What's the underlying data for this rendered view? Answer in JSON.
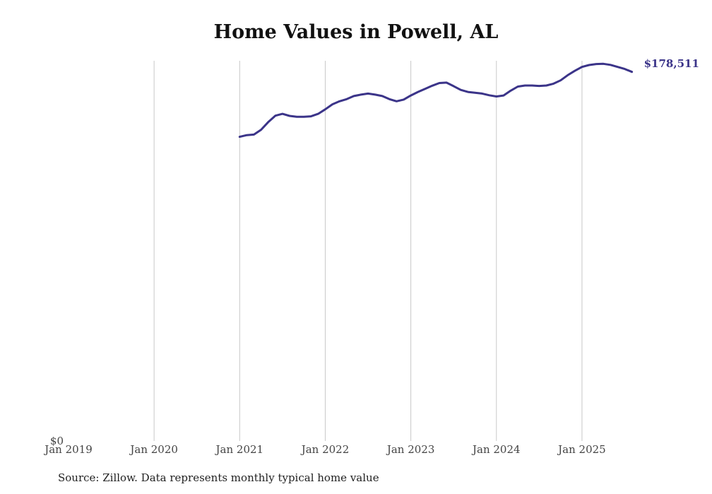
{
  "chart_data": {
    "type": "line",
    "title": "Home Values in Powell, AL",
    "source": "Source: Zillow. Data represents monthly typical home value",
    "xlabel": "",
    "ylabel": "",
    "x_ticks": [
      "Jan 2019",
      "Jan 2020",
      "Jan 2021",
      "Jan 2022",
      "Jan 2023",
      "Jan 2024",
      "Jan 2025"
    ],
    "y_ticks": [
      {
        "value": 0,
        "label": "$0"
      }
    ],
    "ylim": [
      0,
      178511
    ],
    "xlim": [
      "2019-01",
      "2025-12"
    ],
    "grid": {
      "vertical": true,
      "horizontal": false
    },
    "line_color": "#3b3489",
    "end_label": "$178,511",
    "series": [
      {
        "x": [
          "2021-01",
          "2021-02",
          "2021-03",
          "2021-04",
          "2021-05",
          "2021-06",
          "2021-07",
          "2021-08",
          "2021-09",
          "2021-10",
          "2021-11",
          "2021-12",
          "2022-01",
          "2022-02",
          "2022-03",
          "2022-04",
          "2022-05",
          "2022-06",
          "2022-07",
          "2022-08",
          "2022-09",
          "2022-10",
          "2022-11",
          "2022-12",
          "2023-01",
          "2023-02",
          "2023-03",
          "2023-04",
          "2023-05",
          "2023-06",
          "2023-07",
          "2023-08",
          "2023-09",
          "2023-10",
          "2023-11",
          "2023-12",
          "2024-01",
          "2024-02",
          "2024-03",
          "2024-04",
          "2024-05",
          "2024-06",
          "2024-07",
          "2024-08",
          "2024-09",
          "2024-10",
          "2024-11",
          "2024-12",
          "2025-01",
          "2025-02",
          "2025-03",
          "2025-04",
          "2025-05",
          "2025-06",
          "2025-07",
          "2025-08"
        ],
        "values": [
          147100,
          147900,
          148200,
          150500,
          154200,
          157300,
          158200,
          157200,
          156800,
          156800,
          157000,
          158200,
          160400,
          162800,
          164300,
          165300,
          166800,
          167500,
          168000,
          167500,
          166800,
          165300,
          164300,
          165100,
          167100,
          168800,
          170300,
          171800,
          173100,
          173300,
          171600,
          169800,
          168800,
          168400,
          168000,
          167200,
          166600,
          167100,
          169400,
          171400,
          171900,
          171900,
          171700,
          171900,
          172800,
          174400,
          176900,
          179000,
          180900,
          181800,
          182300,
          182400,
          181900,
          180900,
          179900,
          178511
        ]
      }
    ]
  }
}
